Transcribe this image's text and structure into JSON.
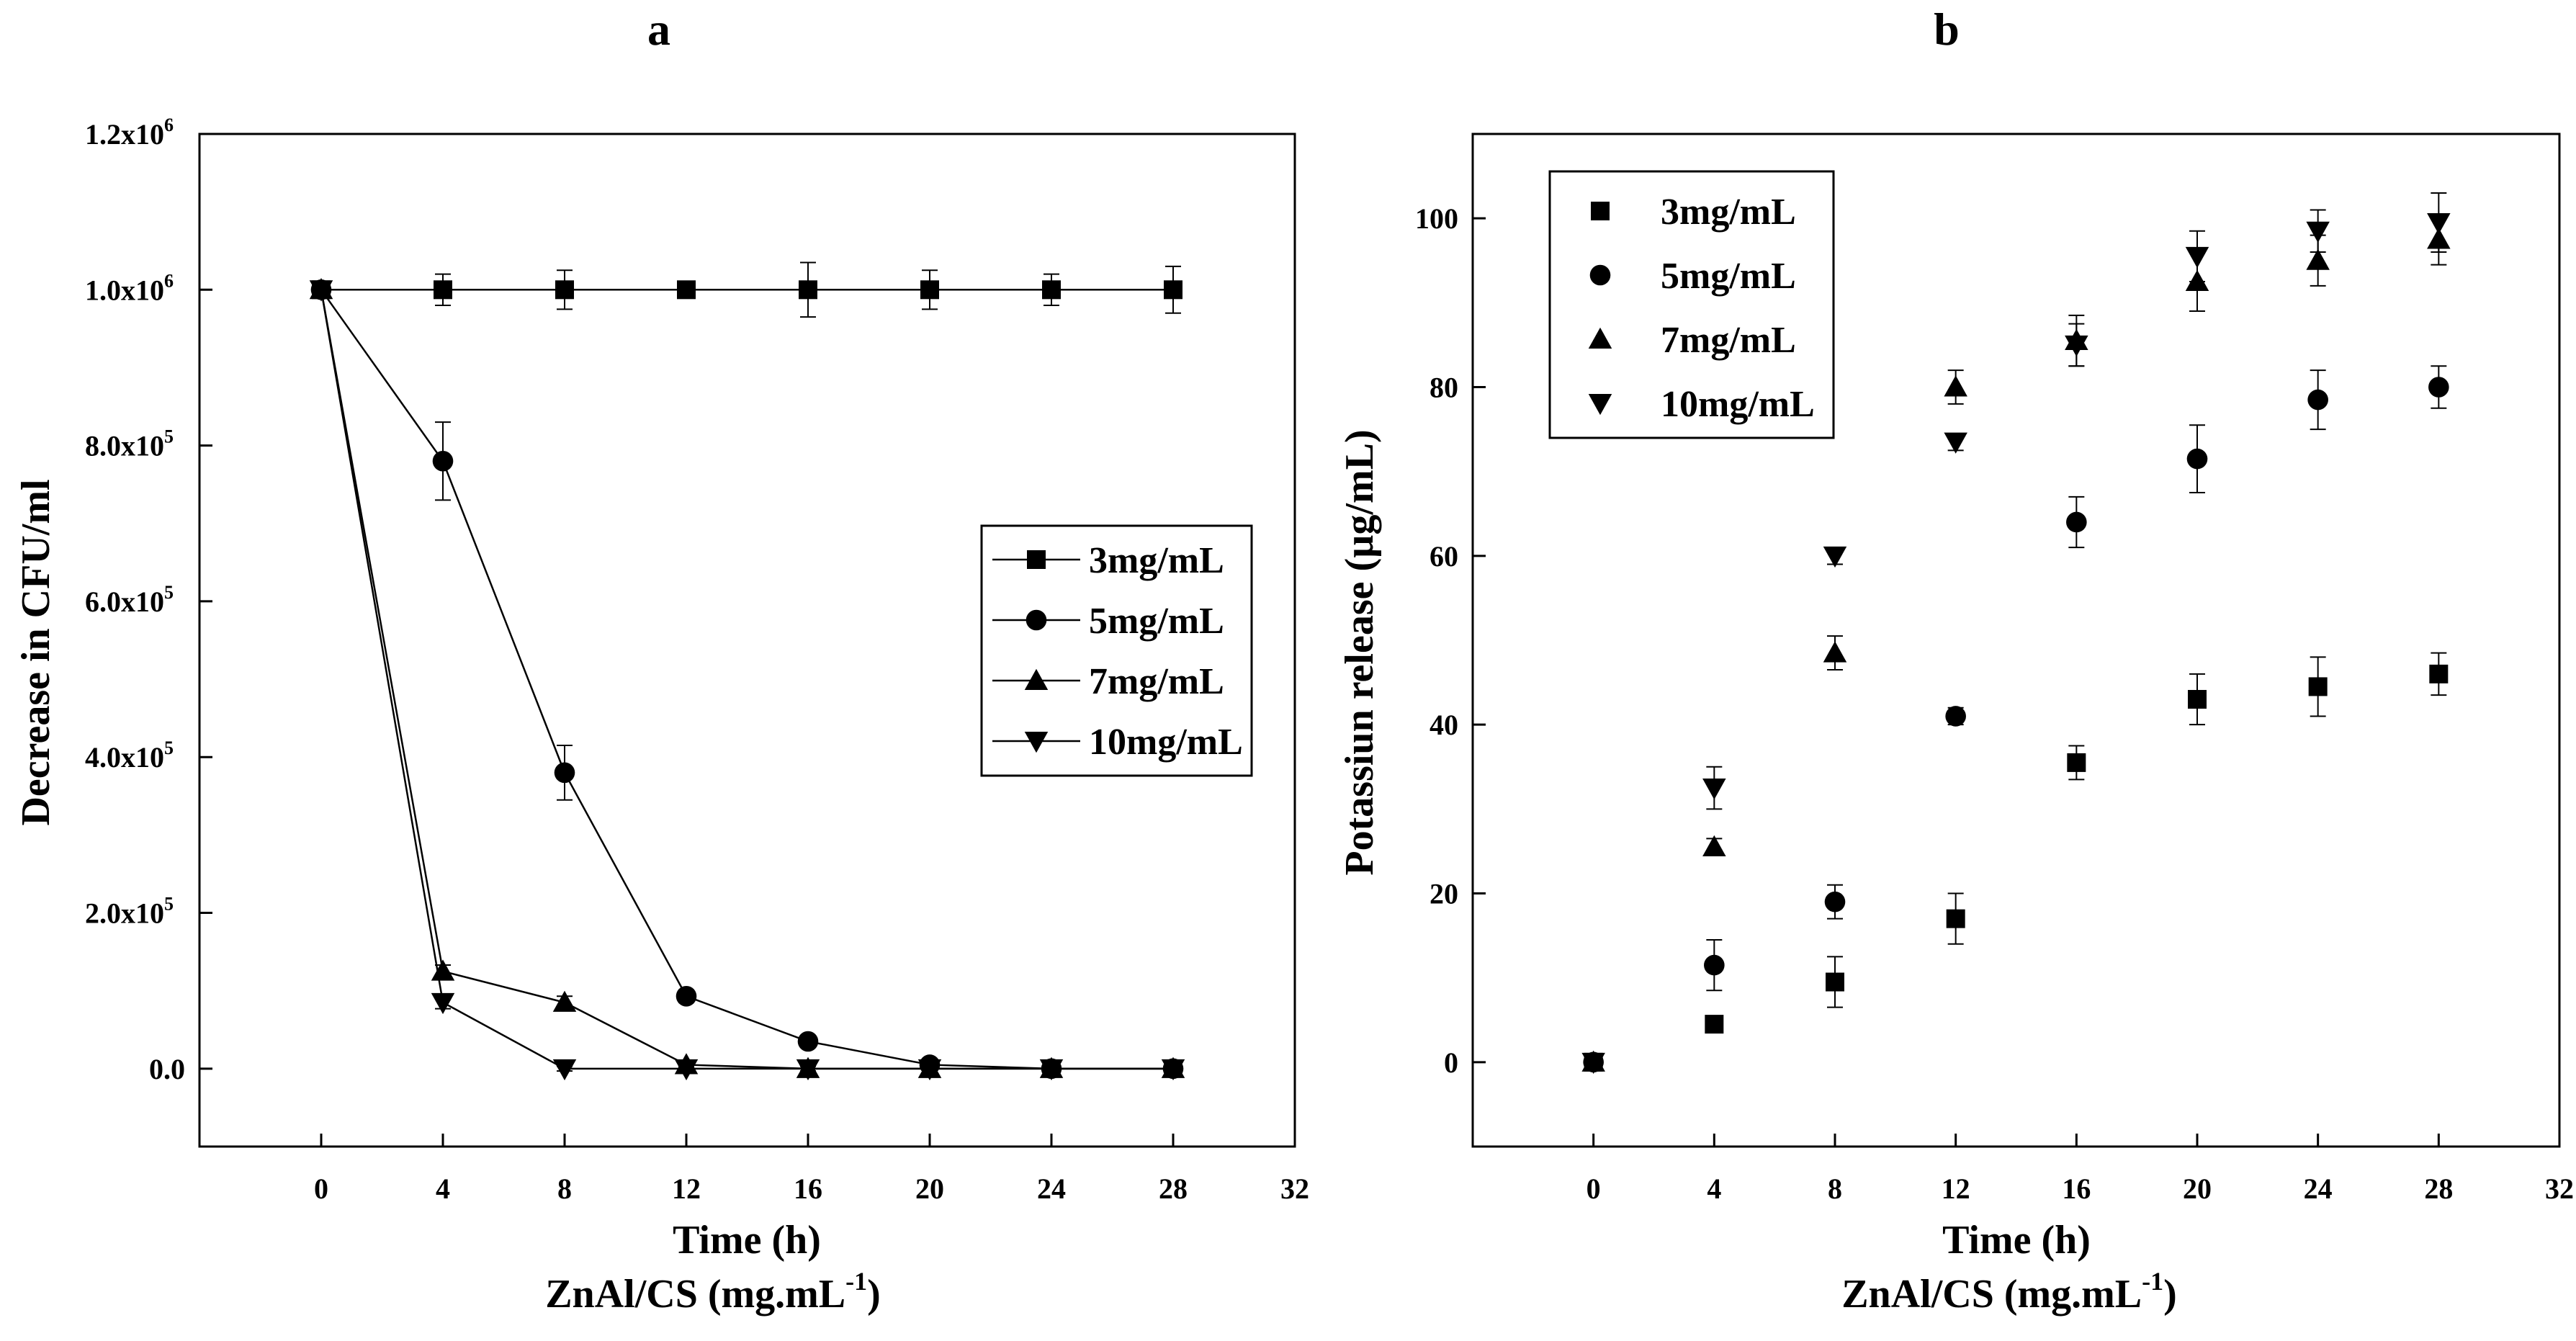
{
  "chart_data": [
    {
      "panel_label": "a",
      "type": "line",
      "xlabel": "Time (h)",
      "xlabel2": "ZnAl/CS (mg.mL",
      "xlabel2_sup": "-1",
      "xlabel2_end": ")",
      "ylabel": "Decrease in CFU/ml",
      "xlim": [
        -4,
        32
      ],
      "ylim": [
        -100000,
        1200000
      ],
      "xticks": [
        0,
        4,
        8,
        12,
        16,
        20,
        24,
        28,
        32
      ],
      "yticks": [
        {
          "value": 0,
          "mant": "0.0",
          "exp": ""
        },
        {
          "value": 200000,
          "mant": "2.0x10",
          "exp": "5"
        },
        {
          "value": 400000,
          "mant": "4.0x10",
          "exp": "5"
        },
        {
          "value": 600000,
          "mant": "6.0x10",
          "exp": "5"
        },
        {
          "value": 800000,
          "mant": "8.0x10",
          "exp": "5"
        },
        {
          "value": 1000000,
          "mant": "1.0x10",
          "exp": "6"
        },
        {
          "value": 1200000,
          "mant": "1.2x10",
          "exp": "6"
        }
      ],
      "legend_position": "center-right",
      "x": [
        0,
        4,
        8,
        12,
        16,
        20,
        24,
        28
      ],
      "series": [
        {
          "name": "3mg/mL",
          "marker": "square",
          "values": [
            1000000,
            1000000,
            1000000,
            1000000,
            1000000,
            1000000,
            1000000,
            1000000
          ],
          "errors": [
            0,
            20000,
            25000,
            10000,
            35000,
            25000,
            20000,
            30000
          ]
        },
        {
          "name": "5mg/mL",
          "marker": "circle",
          "values": [
            1000000,
            780000,
            380000,
            93000,
            35000,
            5000,
            0,
            0
          ],
          "errors": [
            0,
            50000,
            35000,
            8000,
            5000,
            5000,
            3000,
            3000
          ]
        },
        {
          "name": "7mg/mL",
          "marker": "triangle-up",
          "values": [
            1000000,
            125000,
            85000,
            5000,
            0,
            0,
            0,
            0
          ],
          "errors": [
            0,
            8000,
            8000,
            3000,
            3000,
            3000,
            3000,
            3000
          ]
        },
        {
          "name": "10mg/mL",
          "marker": "triangle-down",
          "values": [
            1000000,
            85000,
            0,
            0,
            0,
            0,
            0,
            0
          ],
          "errors": [
            0,
            8000,
            3000,
            3000,
            3000,
            3000,
            3000,
            3000
          ]
        }
      ]
    },
    {
      "panel_label": "b",
      "type": "scatter",
      "xlabel": "Time (h)",
      "xlabel2": "ZnAl/CS (mg.mL",
      "xlabel2_sup": "-1",
      "xlabel2_end": ")",
      "ylabel": "Potassiun release (µg/mL)",
      "xlim": [
        -4,
        32
      ],
      "ylim": [
        -10,
        110
      ],
      "xticks": [
        0,
        4,
        8,
        12,
        16,
        20,
        24,
        28,
        32
      ],
      "yticks": [
        {
          "value": 0,
          "mant": "0",
          "exp": ""
        },
        {
          "value": 20,
          "mant": "20",
          "exp": ""
        },
        {
          "value": 40,
          "mant": "40",
          "exp": ""
        },
        {
          "value": 60,
          "mant": "60",
          "exp": ""
        },
        {
          "value": 80,
          "mant": "80",
          "exp": ""
        },
        {
          "value": 100,
          "mant": "100",
          "exp": ""
        }
      ],
      "legend_position": "top-left",
      "x": [
        0,
        4,
        8,
        12,
        16,
        20,
        24,
        28
      ],
      "series": [
        {
          "name": "3mg/mL",
          "marker": "square",
          "values": [
            0,
            4.5,
            9.5,
            17,
            35.5,
            43,
            44.5,
            46
          ],
          "errors": [
            0,
            0.5,
            3,
            3,
            2,
            3,
            3.5,
            2.5
          ]
        },
        {
          "name": "5mg/mL",
          "marker": "circle",
          "values": [
            0,
            11.5,
            19,
            41,
            64,
            71.5,
            78.5,
            80
          ],
          "errors": [
            0,
            3,
            2,
            1,
            3,
            4,
            3.5,
            2.5
          ]
        },
        {
          "name": "7mg/mL",
          "marker": "triangle-up",
          "values": [
            0,
            25.5,
            48.5,
            80,
            85.5,
            92.5,
            95,
            97.5
          ],
          "errors": [
            0,
            1,
            2,
            2,
            3,
            3.5,
            3,
            3
          ]
        },
        {
          "name": "10mg/mL",
          "marker": "triangle-down",
          "values": [
            0,
            32.5,
            60,
            73.5,
            85,
            95.5,
            98.5,
            99.5
          ],
          "errors": [
            0,
            2.5,
            1,
            1,
            2.5,
            3,
            2.5,
            3.5
          ]
        }
      ]
    }
  ]
}
